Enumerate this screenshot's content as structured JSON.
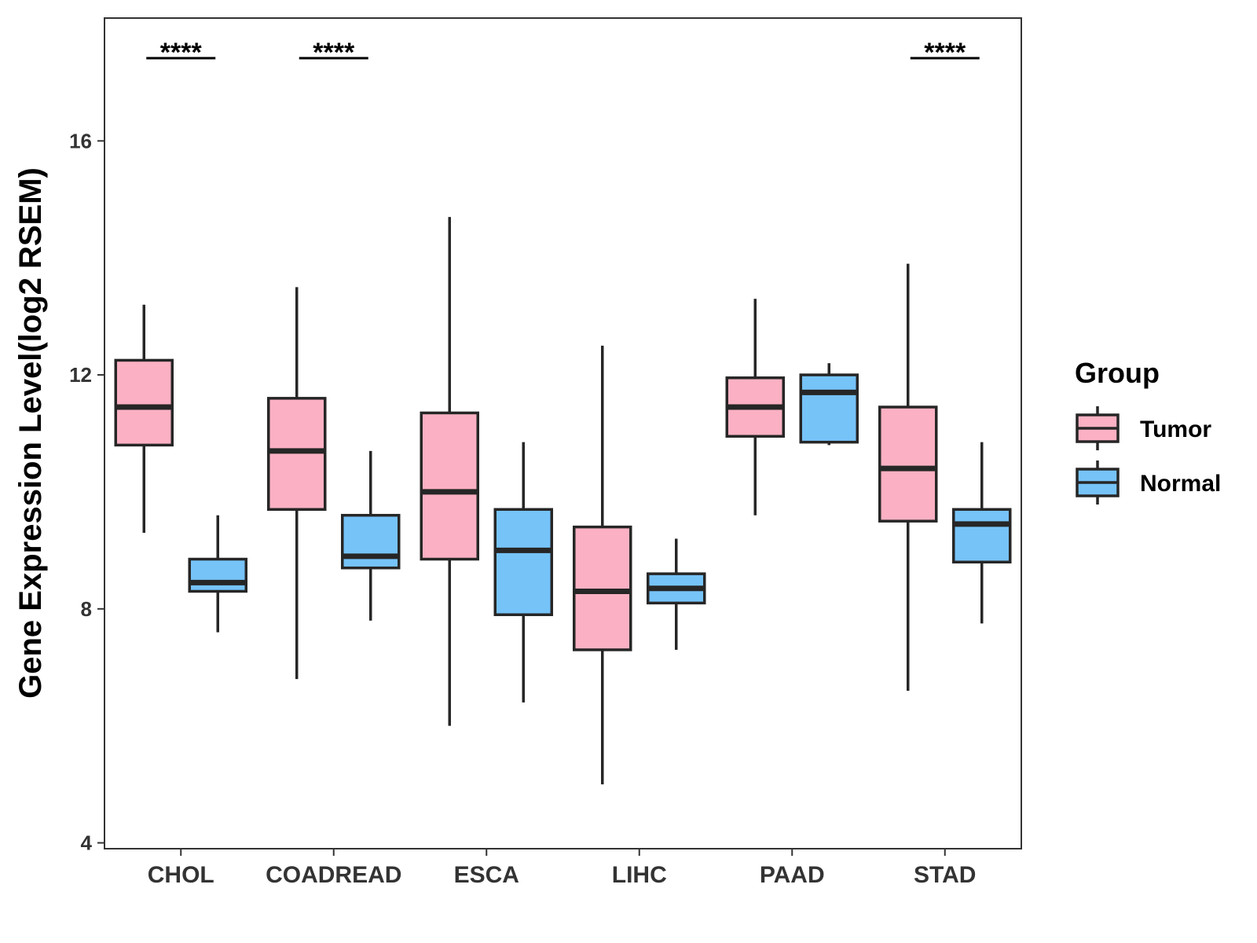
{
  "chart_data": {
    "type": "boxplot",
    "title": "",
    "xlabel": "",
    "ylabel": "Gene Expression Level(log2 RSEM)",
    "ylim": [
      3.9,
      18.1
    ],
    "yticks": [
      4,
      8,
      12,
      16
    ],
    "categories": [
      "CHOL",
      "COADREAD",
      "ESCA",
      "LIHC",
      "PAAD",
      "STAD"
    ],
    "legend": {
      "title": "Group",
      "placement": "right",
      "entries": [
        {
          "name": "Tumor",
          "color": "#FBB1C3"
        },
        {
          "name": "Normal",
          "color": "#76C3F8"
        }
      ]
    },
    "series": [
      {
        "name": "Tumor",
        "color": "#FBB1C3",
        "boxes": [
          {
            "category": "CHOL",
            "min": 9.3,
            "q1": 10.8,
            "median": 11.45,
            "q3": 12.25,
            "max": 13.2
          },
          {
            "category": "COADREAD",
            "min": 6.8,
            "q1": 9.7,
            "median": 10.7,
            "q3": 11.6,
            "max": 13.5
          },
          {
            "category": "ESCA",
            "min": 6.0,
            "q1": 8.85,
            "median": 10.0,
            "q3": 11.35,
            "max": 14.7
          },
          {
            "category": "LIHC",
            "min": 5.0,
            "q1": 7.3,
            "median": 8.3,
            "q3": 9.4,
            "max": 12.5
          },
          {
            "category": "PAAD",
            "min": 9.6,
            "q1": 10.95,
            "median": 11.45,
            "q3": 11.95,
            "max": 13.3
          },
          {
            "category": "STAD",
            "min": 6.6,
            "q1": 9.5,
            "median": 10.4,
            "q3": 11.45,
            "max": 13.9
          }
        ]
      },
      {
        "name": "Normal",
        "color": "#76C3F8",
        "boxes": [
          {
            "category": "CHOL",
            "min": 7.6,
            "q1": 8.3,
            "median": 8.45,
            "q3": 8.85,
            "max": 9.6
          },
          {
            "category": "COADREAD",
            "min": 7.8,
            "q1": 8.7,
            "median": 8.9,
            "q3": 9.6,
            "max": 10.7
          },
          {
            "category": "ESCA",
            "min": 6.4,
            "q1": 7.9,
            "median": 9.0,
            "q3": 9.7,
            "max": 10.85
          },
          {
            "category": "LIHC",
            "min": 7.3,
            "q1": 8.1,
            "median": 8.35,
            "q3": 8.6,
            "max": 9.2
          },
          {
            "category": "PAAD",
            "min": 10.8,
            "q1": 10.85,
            "median": 11.7,
            "q3": 12.0,
            "max": 12.2
          },
          {
            "category": "STAD",
            "min": 7.75,
            "q1": 8.8,
            "median": 9.45,
            "q3": 9.7,
            "max": 10.85
          }
        ]
      }
    ],
    "annotations": [
      {
        "category": "CHOL",
        "label": "****"
      },
      {
        "category": "COADREAD",
        "label": "****"
      },
      {
        "category": "STAD",
        "label": "****"
      }
    ]
  }
}
